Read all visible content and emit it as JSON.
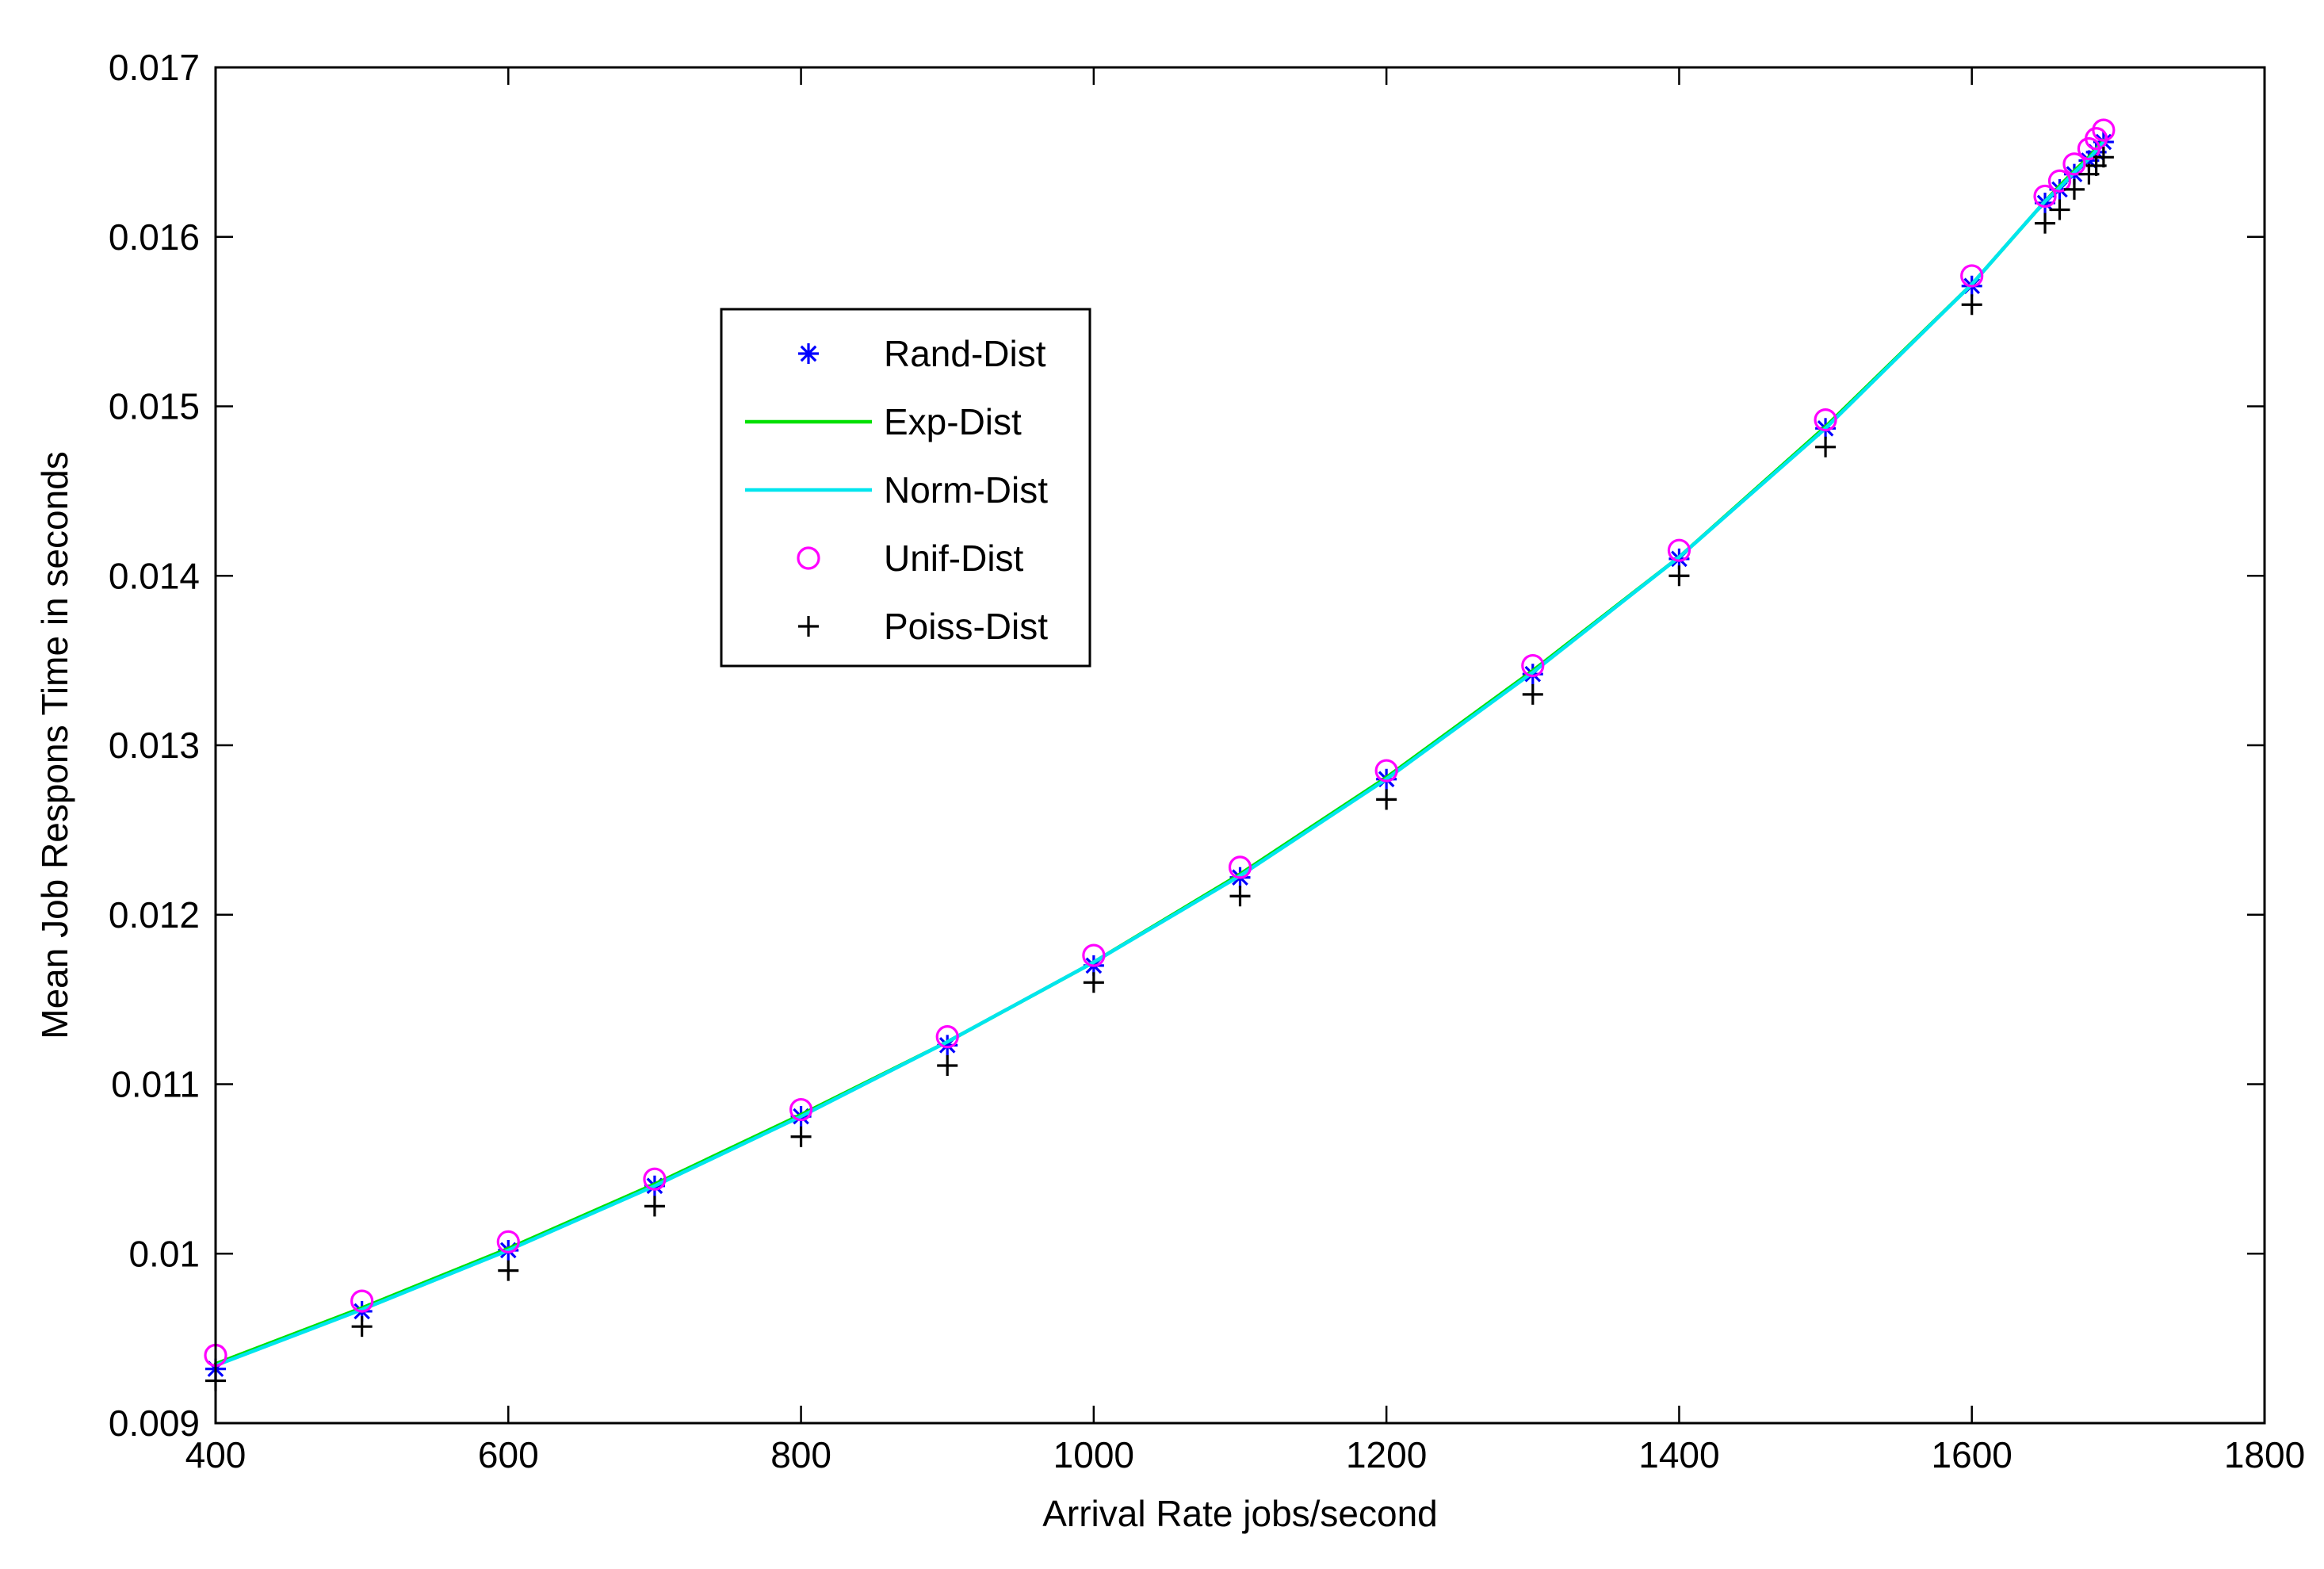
{
  "chart_data": {
    "type": "line",
    "title": "",
    "xlabel": "Arrival Rate jobs/second",
    "ylabel": "Mean Job Respons Time in seconds",
    "xlim": [
      400,
      1800
    ],
    "ylim": [
      0.009,
      0.017
    ],
    "xticks": [
      400,
      600,
      800,
      1000,
      1200,
      1400,
      1600,
      1800
    ],
    "yticks": [
      0.009,
      0.01,
      0.011,
      0.012,
      0.013,
      0.014,
      0.015,
      0.016,
      0.017
    ],
    "ytick_labels": [
      "0.009",
      "0.01",
      "0.011",
      "0.012",
      "0.013",
      "0.014",
      "0.015",
      "0.016",
      "0.017"
    ],
    "grid": false,
    "legend_position": "upper-left",
    "x": [
      400,
      500,
      600,
      700,
      800,
      900,
      1000,
      1100,
      1200,
      1300,
      1400,
      1500,
      1600,
      1650,
      1660,
      1670,
      1680,
      1685,
      1690
    ],
    "series": [
      {
        "name": "Rand-Dist",
        "marker": "asterisk",
        "color": "#0000ff",
        "values": [
          0.00932,
          0.00966,
          0.01002,
          0.0104,
          0.01081,
          0.01123,
          0.0117,
          0.01222,
          0.0128,
          0.01342,
          0.0141,
          0.01487,
          0.01571,
          0.0162,
          0.01628,
          0.01637,
          0.01645,
          0.0165,
          0.01656
        ]
      },
      {
        "name": "Exp-Dist",
        "marker": "line",
        "color": "#00e000",
        "values": [
          0.00935,
          0.00968,
          0.01003,
          0.01041,
          0.01082,
          0.01125,
          0.01172,
          0.01224,
          0.01281,
          0.01344,
          0.01411,
          0.01488,
          0.01572,
          0.01621,
          0.0163,
          0.01639,
          0.01647,
          0.01652,
          0.01657
        ]
      },
      {
        "name": "Norm-Dist",
        "marker": "line",
        "color": "#00e5ee",
        "values": [
          0.00934,
          0.00967,
          0.01002,
          0.0104,
          0.01081,
          0.01125,
          0.01172,
          0.01223,
          0.0128,
          0.01343,
          0.01411,
          0.01487,
          0.01572,
          0.01621,
          0.01629,
          0.01638,
          0.01646,
          0.01651,
          0.01656
        ]
      },
      {
        "name": "Unif-Dist",
        "marker": "circle",
        "color": "#ff00ff",
        "values": [
          0.0094,
          0.00972,
          0.01007,
          0.01044,
          0.01085,
          0.01128,
          0.01176,
          0.01228,
          0.01285,
          0.01347,
          0.01415,
          0.01492,
          0.01577,
          0.01624,
          0.01633,
          0.01643,
          0.01652,
          0.01658,
          0.01663
        ]
      },
      {
        "name": "Poiss-Dist",
        "marker": "plus",
        "color": "#000000",
        "values": [
          0.00925,
          0.00957,
          0.0099,
          0.01028,
          0.01069,
          0.01111,
          0.0116,
          0.01211,
          0.01268,
          0.0133,
          0.014,
          0.01476,
          0.0156,
          0.01608,
          0.01616,
          0.01628,
          0.01637,
          0.01642,
          0.01647
        ]
      }
    ]
  }
}
